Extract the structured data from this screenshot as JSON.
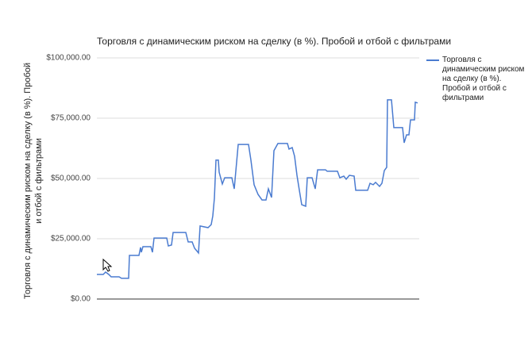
{
  "chart_data": {
    "type": "line",
    "title": "Торговля с динамическим риском на сделку (в %). Пробой и отбой с фильтрами",
    "y_label": "Торговля с динамическим риском на сделку (в %). Пробой и отбой с фильтрами",
    "x": [
      0,
      8,
      11,
      15,
      18,
      28,
      31,
      40,
      41,
      53,
      55,
      56,
      58,
      68,
      70,
      72,
      88,
      90,
      94,
      96,
      112,
      115,
      120,
      123,
      128,
      130,
      140,
      144,
      146,
      148,
      150,
      153,
      154,
      158,
      161,
      170,
      173,
      178,
      191,
      194,
      198,
      203,
      208,
      213,
      216,
      220,
      223,
      228,
      240,
      242,
      246,
      249,
      252,
      255,
      258,
      263,
      265,
      271,
      275,
      278,
      288,
      290,
      303,
      306,
      311,
      314,
      318,
      324,
      326,
      341,
      344,
      348,
      351,
      356,
      359,
      362,
      365,
      366,
      371,
      374,
      385,
      387,
      390,
      393,
      395,
      400,
      401,
      404
    ],
    "series": [
      {
        "name": "Торговля с динамическим риском на сделку (в %). Пробой и отбой с фильтрами",
        "color": "#4a7bd0",
        "values": [
          10200,
          10200,
          11200,
          10200,
          9200,
          9200,
          8600,
          8600,
          18100,
          18100,
          21400,
          19400,
          21700,
          21700,
          19400,
          25300,
          25300,
          22000,
          22400,
          27600,
          27600,
          23700,
          23700,
          21100,
          19100,
          30300,
          29600,
          30900,
          34500,
          41800,
          57600,
          57600,
          52600,
          47700,
          50300,
          50300,
          45700,
          64100,
          64100,
          57600,
          47400,
          43400,
          41100,
          41100,
          45700,
          42100,
          61500,
          64500,
          64500,
          62200,
          62800,
          59200,
          51300,
          45100,
          39100,
          38500,
          50300,
          50300,
          45700,
          53600,
          53600,
          53000,
          53000,
          50300,
          51000,
          49700,
          51300,
          51000,
          45100,
          45100,
          48000,
          47400,
          48400,
          46700,
          48000,
          53300,
          54600,
          82600,
          82600,
          71100,
          71100,
          64800,
          68100,
          68100,
          74300,
          74300,
          81600,
          81300
        ]
      }
    ],
    "xlim": [
      0,
      406
    ],
    "ylim": [
      0,
      100000
    ],
    "yticks": [
      {
        "value": 0,
        "label": "$0.00"
      },
      {
        "value": 25000,
        "label": "$25,000.00"
      },
      {
        "value": 50000,
        "label": "$50,000.00"
      },
      {
        "value": 75000,
        "label": "$75,000.00"
      },
      {
        "value": 100000,
        "label": "$100,000.00"
      }
    ],
    "grid": true,
    "legend": "right"
  }
}
